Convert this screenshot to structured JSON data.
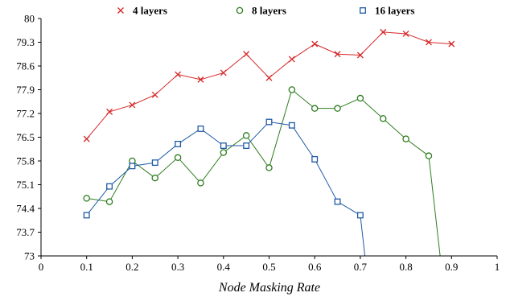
{
  "chart_data": {
    "type": "line",
    "title": "",
    "xlabel": "Node Masking Rate",
    "ylabel": "",
    "xlim": [
      0,
      1
    ],
    "ylim": [
      73,
      80
    ],
    "xticks": [
      0,
      0.1,
      0.2,
      0.3,
      0.4,
      0.5,
      0.6,
      0.7,
      0.8,
      0.9,
      1
    ],
    "xtick_labels": [
      "0",
      "0.1",
      "0.2",
      "0.3",
      "0.4",
      "0.5",
      "0.6",
      "0.7",
      "0.8",
      "0.9",
      "1"
    ],
    "yticks": [
      73,
      73.7,
      74.4,
      75.1,
      75.8,
      76.5,
      77.2,
      77.9,
      78.6,
      79.3,
      80
    ],
    "ytick_labels": [
      "73",
      "73.7",
      "74.4",
      "75.1",
      "75.8",
      "76.5",
      "77.2",
      "77.9",
      "78.6",
      "79.3",
      "80"
    ],
    "grid": false,
    "legend_position": "top",
    "series": [
      {
        "name": "4 layers",
        "color": "#d62728",
        "marker": "x",
        "x": [
          0.1,
          0.15,
          0.2,
          0.25,
          0.3,
          0.35,
          0.4,
          0.45,
          0.5,
          0.55,
          0.6,
          0.65,
          0.7,
          0.75,
          0.8,
          0.85,
          0.9
        ],
        "y": [
          76.45,
          77.25,
          77.45,
          77.75,
          78.35,
          78.2,
          78.4,
          78.95,
          78.25,
          78.8,
          79.25,
          78.95,
          78.92,
          79.6,
          79.55,
          79.3,
          79.25
        ]
      },
      {
        "name": "8 layers",
        "color": "#2e7d1f",
        "marker": "o",
        "x": [
          0.1,
          0.15,
          0.2,
          0.25,
          0.3,
          0.35,
          0.4,
          0.45,
          0.5,
          0.55,
          0.6,
          0.65,
          0.7,
          0.75,
          0.8,
          0.85,
          0.875
        ],
        "y": [
          74.7,
          74.6,
          75.8,
          75.3,
          75.9,
          75.15,
          76.05,
          76.55,
          75.6,
          77.9,
          77.35,
          77.35,
          77.65,
          77.05,
          76.45,
          75.95,
          73
        ]
      },
      {
        "name": "16 layers",
        "color": "#1f5aa6",
        "marker": "square",
        "x": [
          0.1,
          0.15,
          0.2,
          0.25,
          0.3,
          0.35,
          0.4,
          0.45,
          0.5,
          0.55,
          0.6,
          0.65,
          0.7,
          0.71
        ],
        "y": [
          74.2,
          75.05,
          75.65,
          75.75,
          76.3,
          76.75,
          76.25,
          76.25,
          76.95,
          76.85,
          75.85,
          74.6,
          74.2,
          73
        ]
      }
    ]
  }
}
